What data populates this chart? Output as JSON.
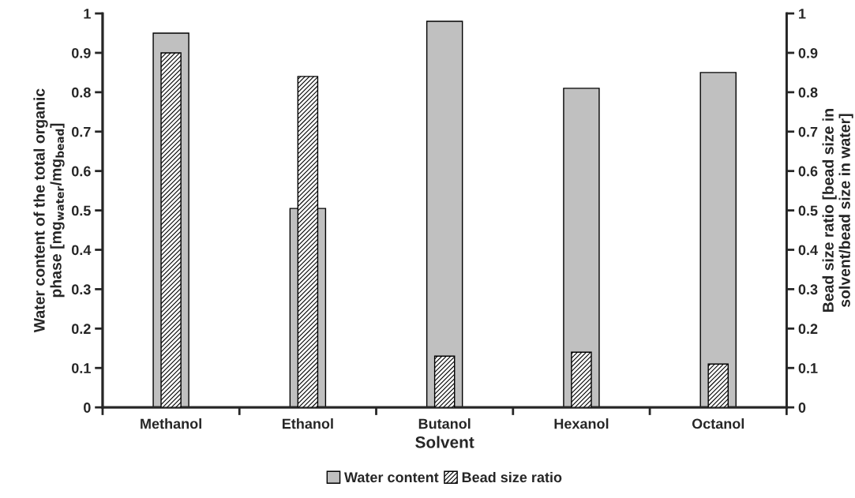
{
  "chart_data": {
    "type": "bar",
    "categories": [
      "Methanol",
      "Ethanol",
      "Butanol",
      "Hexanol",
      "Octanol"
    ],
    "xlabel": "Solvent",
    "ylabel": "Water content of the total organic\nphase [mg$_{water}$/mg$_{bead}$]",
    "y2label": "Bead size ratio [bead size in\nsolvent/bead size in water]",
    "series": [
      {
        "name": "Water content",
        "color": "#c0c0c0",
        "values": [
          0.95,
          0.505,
          0.98,
          0.81,
          0.85
        ]
      },
      {
        "name": "Bead size ratio",
        "color": "#000000",
        "axis": "y2",
        "values": [
          0.9,
          0.84,
          0.13,
          0.14,
          0.11
        ]
      }
    ],
    "ylim": [
      0,
      1
    ],
    "yticks": [
      0,
      0.1,
      0.2,
      0.3,
      0.4,
      0.5,
      0.6,
      0.7,
      0.8,
      0.9,
      1
    ],
    "y2lim": [
      0,
      1
    ],
    "y2ticks": [
      0,
      0.1,
      0.2,
      0.3,
      0.4,
      0.5,
      0.6,
      0.7,
      0.8,
      0.9,
      1
    ],
    "grid": false,
    "legend": "bottom"
  }
}
